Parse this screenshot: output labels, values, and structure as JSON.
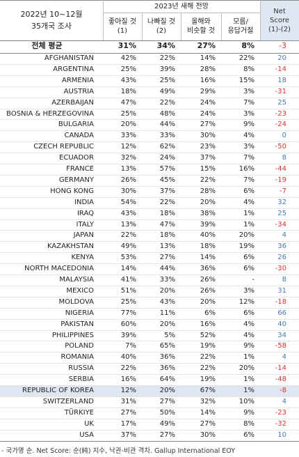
{
  "header": {
    "survey": [
      "2022년 10~12월",
      "35개국 조사"
    ],
    "group": "2023년 새해 전망",
    "columns": [
      [
        "좋아질 것",
        "(1)"
      ],
      [
        "나빠질 것",
        "(2)"
      ],
      [
        "올해와",
        "비슷할 것"
      ],
      [
        "모름/",
        "응답거절"
      ]
    ],
    "net": [
      "Net",
      "Score",
      "(1)-(2)"
    ]
  },
  "average": {
    "name": "전체 평균",
    "cells": [
      "31%",
      "34%",
      "27%",
      "8%"
    ],
    "net": -3
  },
  "table": {
    "rows": [
      [
        "AFGHANISTAN",
        "42%",
        "22%",
        "14%",
        "22%",
        20
      ],
      [
        "ARGENTINA",
        "25%",
        "39%",
        "28%",
        "8%",
        -14
      ],
      [
        "ARMENIA",
        "43%",
        "25%",
        "16%",
        "15%",
        18
      ],
      [
        "AUSTRIA",
        "18%",
        "49%",
        "29%",
        "3%",
        -31
      ],
      [
        "AZERBAIJAN",
        "47%",
        "22%",
        "24%",
        "7%",
        25
      ],
      [
        "BOSNIA & HERZEGOVINA",
        "25%",
        "48%",
        "24%",
        "3%",
        -23
      ],
      [
        "BULGARIA",
        "20%",
        "44%",
        "27%",
        "9%",
        -24
      ],
      [
        "CANADA",
        "33%",
        "33%",
        "30%",
        "4%",
        0
      ],
      [
        "CZECH REPUBLIC",
        "12%",
        "62%",
        "23%",
        "3%",
        -50
      ],
      [
        "ECUADOR",
        "32%",
        "24%",
        "37%",
        "7%",
        8
      ],
      [
        "FRANCE",
        "13%",
        "57%",
        "15%",
        "16%",
        -44
      ],
      [
        "GERMANY",
        "26%",
        "45%",
        "22%",
        "7%",
        -19
      ],
      [
        "HONG KONG",
        "30%",
        "37%",
        "28%",
        "6%",
        -7
      ],
      [
        "INDIA",
        "54%",
        "22%",
        "20%",
        "4%",
        32
      ],
      [
        "IRAQ",
        "43%",
        "18%",
        "38%",
        "1%",
        25
      ],
      [
        "ITALY",
        "13%",
        "47%",
        "39%",
        "1%",
        -34
      ],
      [
        "JAPAN",
        "22%",
        "18%",
        "40%",
        "20%",
        4
      ],
      [
        "KAZAKHSTAN",
        "49%",
        "13%",
        "18%",
        "19%",
        36
      ],
      [
        "KENYA",
        "53%",
        "27%",
        "14%",
        "6%",
        26
      ],
      [
        "NORTH MACEDONIA",
        "14%",
        "44%",
        "36%",
        "6%",
        -30
      ],
      [
        "MALAYSIA",
        "41%",
        "33%",
        "26%",
        "-",
        8
      ],
      [
        "MEXICO",
        "51%",
        "20%",
        "26%",
        "3%",
        31
      ],
      [
        "MOLDOVA",
        "25%",
        "43%",
        "20%",
        "12%",
        -18
      ],
      [
        "NIGERIA",
        "77%",
        "11%",
        "6%",
        "6%",
        66
      ],
      [
        "PAKISTAN",
        "60%",
        "20%",
        "16%",
        "4%",
        40
      ],
      [
        "PHILIPPINES",
        "39%",
        "5%",
        "52%",
        "4%",
        34
      ],
      [
        "POLAND",
        "7%",
        "65%",
        "19%",
        "9%",
        -58
      ],
      [
        "ROMANIA",
        "40%",
        "36%",
        "22%",
        "1%",
        4
      ],
      [
        "RUSSIA",
        "22%",
        "36%",
        "22%",
        "20%",
        -14
      ],
      [
        "SERBIA",
        "16%",
        "64%",
        "19%",
        "1%",
        -48
      ],
      [
        "REPUBLIC OF KOREA",
        "12%",
        "20%",
        "67%",
        "1%",
        -8
      ],
      [
        "SWITZERLAND",
        "31%",
        "27%",
        "32%",
        "10%",
        4
      ],
      [
        "TÜRKIYE",
        "27%",
        "50%",
        "14%",
        "9%",
        -23
      ],
      [
        "UK",
        "17%",
        "49%",
        "27%",
        "8%",
        -32
      ],
      [
        "USA",
        "37%",
        "27%",
        "30%",
        "6%",
        10
      ]
    ],
    "highlight_row": 30
  },
  "footnote": "- 국가명 순. Net Score: 순(純) 지수, 낙관-비관 격차. Gallup International EOY"
}
